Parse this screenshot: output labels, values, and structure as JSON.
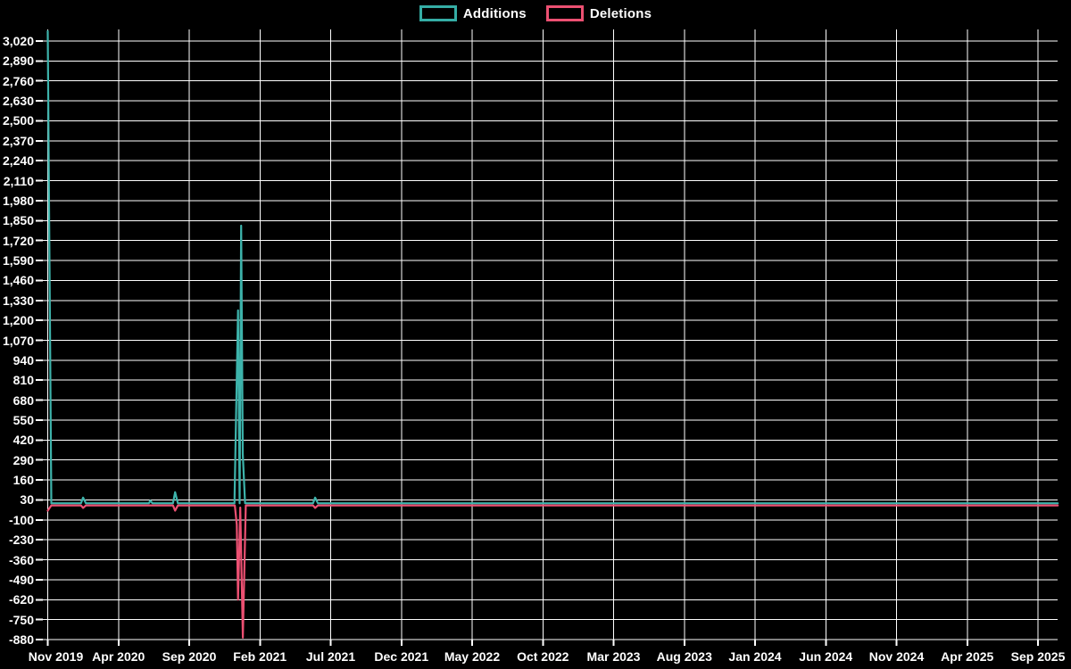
{
  "legend": {
    "items": [
      {
        "label": "Additions",
        "color": "#35ada5"
      },
      {
        "label": "Deletions",
        "color": "#ec5072"
      }
    ]
  },
  "chart_data": {
    "type": "line",
    "title": "",
    "background": "#000000",
    "grid": true,
    "gridline_color": "#ffffff",
    "legend_position": "top-center",
    "ylim": [
      -880,
      3085
    ],
    "y_ticks": [
      3020,
      2890,
      2760,
      2630,
      2500,
      2370,
      2240,
      2110,
      1980,
      1850,
      1720,
      1590,
      1460,
      1330,
      1200,
      1070,
      940,
      810,
      680,
      550,
      420,
      290,
      160,
      30,
      -100,
      -230,
      -360,
      -490,
      -620,
      -750,
      -880
    ],
    "x_tick_labels": [
      "Nov 2019",
      "Apr 2020",
      "Sep 2020",
      "Feb 2021",
      "Jul 2021",
      "Dec 2021",
      "May 2022",
      "Oct 2022",
      "Mar 2023",
      "Aug 2023",
      "Jan 2024",
      "Jun 2024",
      "Nov 2024",
      "Apr 2025",
      "Sep 2025"
    ],
    "x_unit": "ticks are 5 months apart; series x values are in tick units from Nov 2019",
    "series": [
      {
        "name": "Additions",
        "color": "#3db3ab",
        "points": [
          [
            0,
            3084
          ],
          [
            0.05,
            8
          ],
          [
            0.47,
            8
          ],
          [
            0.5,
            45
          ],
          [
            0.54,
            8
          ],
          [
            1.43,
            8
          ],
          [
            1.45,
            25
          ],
          [
            1.48,
            8
          ],
          [
            1.77,
            8
          ],
          [
            1.8,
            80
          ],
          [
            1.84,
            8
          ],
          [
            2.64,
            8
          ],
          [
            2.69,
            1265
          ],
          [
            2.713,
            8
          ],
          [
            2.735,
            1817
          ],
          [
            2.757,
            330
          ],
          [
            2.79,
            8
          ],
          [
            3.75,
            8
          ],
          [
            3.78,
            45
          ],
          [
            3.82,
            8
          ],
          [
            14.28,
            8
          ]
        ]
      },
      {
        "name": "Deletions",
        "color": "#ec5072",
        "points": [
          [
            0,
            -40
          ],
          [
            0.05,
            -6
          ],
          [
            0.47,
            -6
          ],
          [
            0.5,
            -22
          ],
          [
            0.54,
            -6
          ],
          [
            1.77,
            -6
          ],
          [
            1.8,
            -40
          ],
          [
            1.84,
            -6
          ],
          [
            2.645,
            -6
          ],
          [
            2.672,
            -130
          ],
          [
            2.69,
            -620
          ],
          [
            2.722,
            -20
          ],
          [
            2.758,
            -868
          ],
          [
            2.8,
            -6
          ],
          [
            3.75,
            -6
          ],
          [
            3.78,
            -22
          ],
          [
            3.82,
            -6
          ],
          [
            14.28,
            -6
          ]
        ]
      }
    ]
  }
}
